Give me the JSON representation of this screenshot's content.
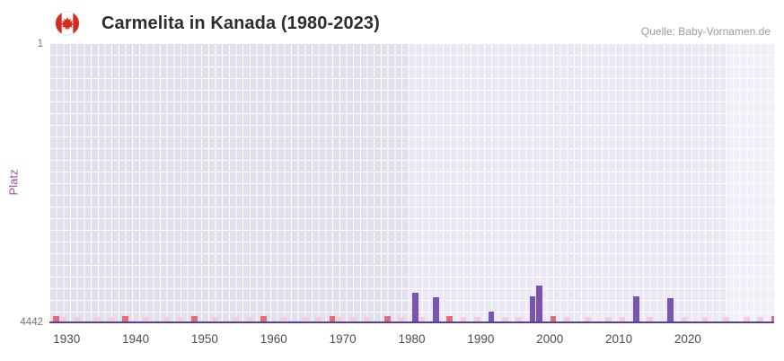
{
  "header": {
    "title": "Carmelita in Kanada (1980-2023)",
    "source": "Quelle: Baby-Vornamen.de"
  },
  "chart_data": {
    "type": "bar",
    "title": "Carmelita in Kanada (1980-2023)",
    "xlabel": "",
    "ylabel": "Platz",
    "grid": true,
    "legend": "none",
    "y_axis": {
      "min": 1,
      "max": 4442,
      "inverted": true,
      "tick_top": "1",
      "tick_bottom": "4442"
    },
    "x_axis": {
      "domain": [
        1927.5,
        2032.5
      ],
      "ticks": [
        "1930",
        "1940",
        "1950",
        "1960",
        "1970",
        "1980",
        "1990",
        "2000",
        "2010",
        "2020"
      ]
    },
    "series": [
      {
        "name": "Platz",
        "color": "#7a55b0",
        "points": [
          {
            "year": 1980,
            "rank": 3960
          },
          {
            "year": 1983,
            "rank": 4030
          },
          {
            "year": 1991,
            "rank": 4250
          },
          {
            "year": 1997,
            "rank": 4010
          },
          {
            "year": 1998,
            "rank": 3845
          },
          {
            "year": 2012,
            "rank": 4010
          },
          {
            "year": 2017,
            "rank": 4040
          }
        ]
      }
    ],
    "bottom_markers": {
      "strong": {
        "color": "#df6d7c",
        "years": [
          1928,
          1938,
          1948,
          1958,
          1968,
          1976,
          1985,
          2000,
          2032
        ]
      },
      "pale": {
        "color": "#f3cdd8",
        "years": [
          1929,
          1931,
          1934,
          1936,
          1941,
          1944,
          1946,
          1951,
          1954,
          1956,
          1961,
          1964,
          1966,
          1969,
          1971,
          1973,
          1978,
          1981,
          1987,
          1989,
          1993,
          1995,
          2002,
          2005,
          2008,
          2010,
          2014,
          2019,
          2022,
          2025,
          2028,
          2030
        ]
      }
    },
    "background_bands": [
      {
        "from": 1927.5,
        "to": 1979.5,
        "color": "#e3e0ee"
      },
      {
        "from": 1979.5,
        "to": 2025.5,
        "color": "#eae8f4"
      },
      {
        "from": 2025.5,
        "to": 2032.5,
        "color": "#f1eff8"
      }
    ],
    "baseline_color": "#5c3d94"
  },
  "colors": {
    "bar": "#7a55b0",
    "axis_label": "#9c529b",
    "x_tick": "#4d4d4d",
    "y_tick": "#767676",
    "title": "#2d2d2d",
    "source": "#9b9b9b",
    "flag_red": "#d52b1e"
  }
}
